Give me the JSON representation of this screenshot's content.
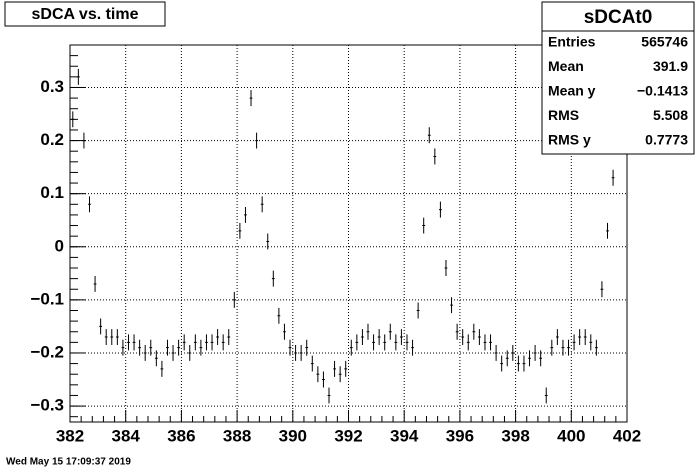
{
  "chart_data": {
    "type": "scatter",
    "title": "sDCA vs. time",
    "x": [
      382.1,
      382.3,
      382.5,
      382.7,
      382.9,
      383.1,
      383.3,
      383.5,
      383.7,
      383.9,
      384.1,
      384.3,
      384.5,
      384.7,
      384.9,
      385.1,
      385.3,
      385.5,
      385.7,
      385.9,
      386.1,
      386.3,
      386.5,
      386.7,
      386.9,
      387.1,
      387.3,
      387.5,
      387.7,
      387.9,
      388.1,
      388.3,
      388.5,
      388.7,
      388.9,
      389.1,
      389.3,
      389.5,
      389.7,
      389.9,
      390.1,
      390.3,
      390.5,
      390.7,
      390.9,
      391.1,
      391.3,
      391.5,
      391.7,
      391.9,
      392.1,
      392.3,
      392.5,
      392.7,
      392.9,
      393.1,
      393.3,
      393.5,
      393.7,
      393.9,
      394.1,
      394.3,
      394.5,
      394.7,
      394.9,
      395.1,
      395.3,
      395.5,
      395.7,
      395.9,
      396.1,
      396.3,
      396.5,
      396.7,
      396.9,
      397.1,
      397.3,
      397.5,
      397.7,
      397.9,
      398.1,
      398.3,
      398.5,
      398.7,
      398.9,
      399.1,
      399.3,
      399.5,
      399.7,
      399.9,
      400.1,
      400.3,
      400.5,
      400.7,
      400.9,
      401.1,
      401.3,
      401.5
    ],
    "y": [
      0.24,
      0.32,
      0.2,
      0.08,
      -0.07,
      -0.15,
      -0.17,
      -0.17,
      -0.17,
      -0.19,
      -0.18,
      -0.18,
      -0.19,
      -0.2,
      -0.19,
      -0.21,
      -0.23,
      -0.19,
      -0.2,
      -0.19,
      -0.18,
      -0.2,
      -0.18,
      -0.19,
      -0.18,
      -0.18,
      -0.17,
      -0.18,
      -0.17,
      -0.1,
      0.03,
      0.06,
      0.28,
      0.2,
      0.08,
      0.01,
      -0.06,
      -0.13,
      -0.16,
      -0.19,
      -0.2,
      -0.2,
      -0.19,
      -0.22,
      -0.24,
      -0.25,
      -0.28,
      -0.23,
      -0.24,
      -0.23,
      -0.19,
      -0.18,
      -0.17,
      -0.16,
      -0.18,
      -0.17,
      -0.18,
      -0.16,
      -0.18,
      -0.17,
      -0.18,
      -0.19,
      -0.12,
      0.04,
      0.21,
      0.17,
      0.07,
      -0.04,
      -0.11,
      -0.16,
      -0.17,
      -0.18,
      -0.16,
      -0.17,
      -0.18,
      -0.18,
      -0.2,
      -0.22,
      -0.21,
      -0.2,
      -0.22,
      -0.22,
      -0.21,
      -0.2,
      -0.21,
      -0.28,
      -0.19,
      -0.17,
      -0.19,
      -0.19,
      -0.18,
      -0.17,
      -0.17,
      -0.18,
      -0.19,
      -0.08,
      0.03,
      0.13
    ],
    "yerr": 0.015,
    "xerr": 0.05,
    "color": "#000000",
    "xlim": [
      382,
      402
    ],
    "xticks": [
      382,
      384,
      386,
      388,
      390,
      392,
      394,
      396,
      398,
      400,
      402
    ],
    "ylim": [
      -0.33,
      0.38
    ],
    "yticks": [
      {
        "value": -0.3,
        "label": "−0.3"
      },
      {
        "value": -0.2,
        "label": "−0.2"
      },
      {
        "value": -0.1,
        "label": "−0.1"
      },
      0,
      0.1,
      0.2,
      0.3
    ],
    "grid": true,
    "stats": {
      "title": "sDCAt0",
      "rows": [
        [
          "Entries",
          "565746"
        ],
        [
          "Mean",
          "391.9"
        ],
        [
          "Mean y",
          "−0.1413"
        ],
        [
          "RMS",
          "5.508"
        ],
        [
          "RMS y",
          "0.7773"
        ]
      ]
    },
    "timestamp": "Wed May 15 17:09:37 2019"
  }
}
